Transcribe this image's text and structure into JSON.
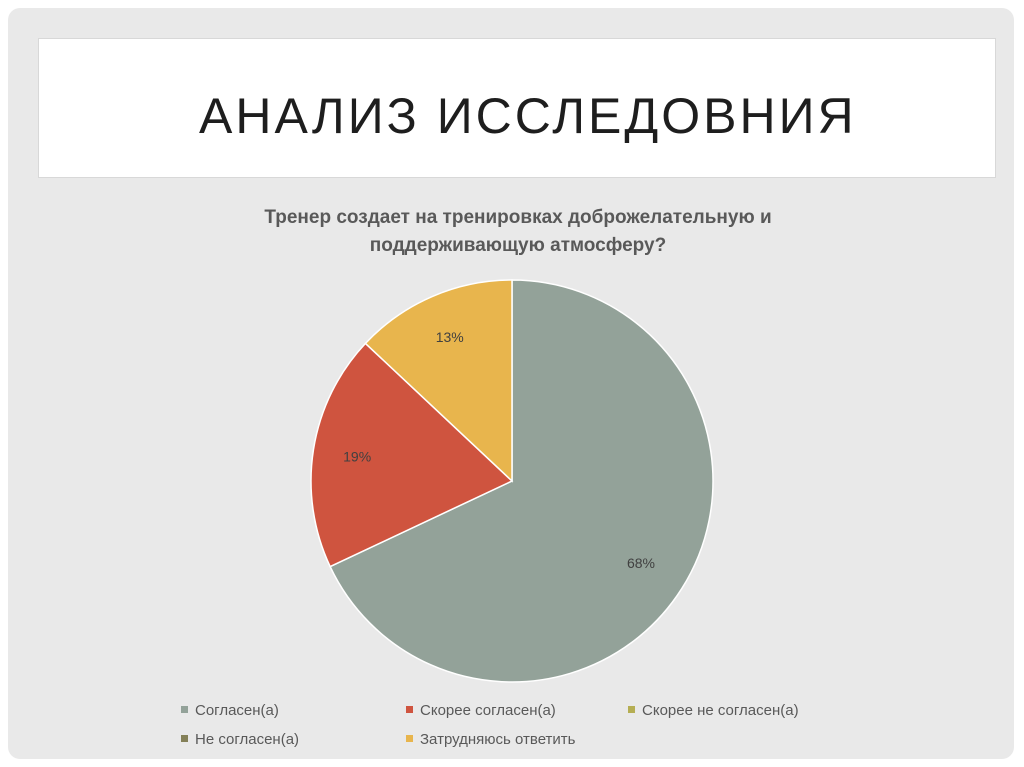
{
  "slide": {
    "title": "АНАЛИЗ ИССЛЕДОВНИЯ"
  },
  "chart_data": {
    "type": "pie",
    "title_lines": [
      "Тренер создает на тренировках доброжелательную и",
      "поддерживающую атмосферу?"
    ],
    "slices": [
      {
        "label": "Согласен(а)",
        "value": 68,
        "display": "68%",
        "color": "#93a299"
      },
      {
        "label": "Скорее согласен(а)",
        "value": 19,
        "display": "19%",
        "color": "#cf543f"
      },
      {
        "label": "Скорее не согласен(а)",
        "value": 0,
        "display": "",
        "color": "#b5ae53"
      },
      {
        "label": "Не  согласен(а)",
        "value": 0,
        "display": "",
        "color": "#848058"
      },
      {
        "label": "Затрудняюсь ответить",
        "value": 13,
        "display": "13%",
        "color": "#e8b54d"
      }
    ],
    "legend_placement": "bottom"
  }
}
